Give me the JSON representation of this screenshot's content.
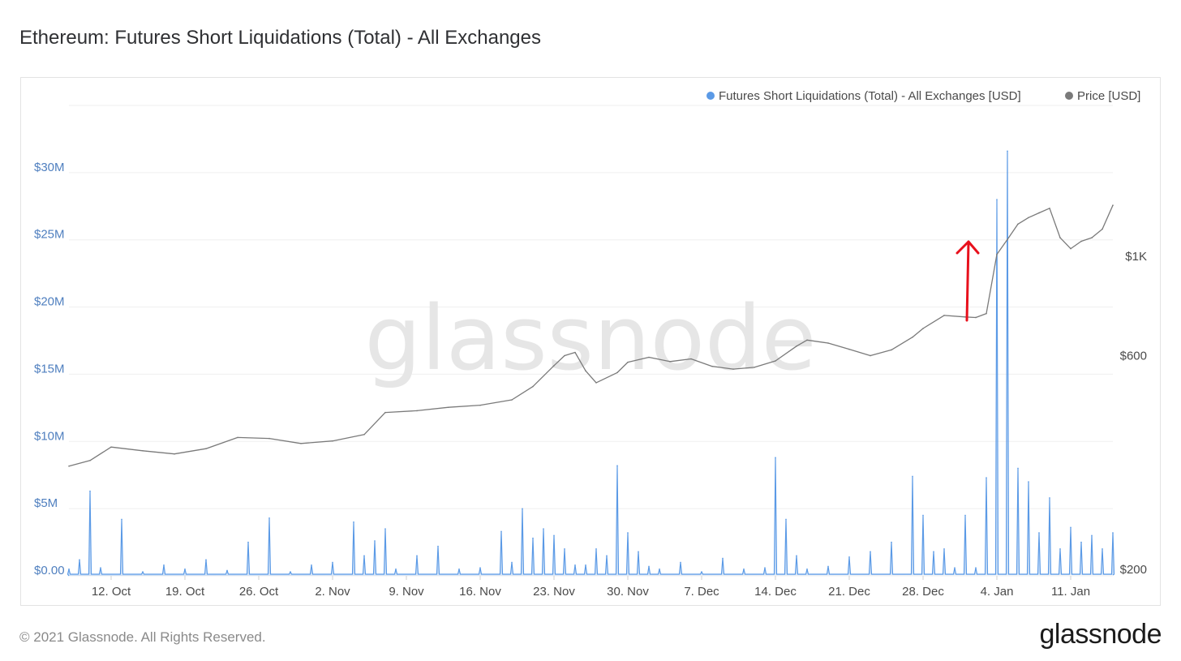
{
  "title": "Ethereum: Futures Short Liquidations (Total) - All Exchanges",
  "footer": "© 2021 Glassnode. All Rights Reserved.",
  "brand": "glassnode",
  "watermark": "glassnode",
  "colors": {
    "liquidations": "#5b9ae6",
    "price": "#7a7a7a",
    "left_axis_text": "#4f7fbf",
    "annotation_arrow": "#e8101c"
  },
  "chart_data": {
    "type": "line",
    "legend": {
      "placement": "top-right",
      "entries": [
        {
          "label": "Futures Short Liquidations (Total) - All Exchanges [USD]",
          "color": "#5b9ae6"
        },
        {
          "label": "Price [USD]",
          "color": "#7a7a7a"
        }
      ]
    },
    "x_ticks": [
      "12. Oct",
      "19. Oct",
      "26. Oct",
      "2. Nov",
      "9. Nov",
      "16. Nov",
      "23. Nov",
      "30. Nov",
      "7. Dec",
      "14. Dec",
      "21. Dec",
      "28. Dec",
      "4. Jan",
      "11. Jan"
    ],
    "x_range": [
      "2020-10-08",
      "2021-01-15"
    ],
    "y_left": {
      "ticks": [
        0,
        5000000,
        10000000,
        15000000,
        20000000,
        25000000,
        30000000
      ],
      "tick_labels": [
        "$0.00",
        "$5M",
        "$10M",
        "$15M",
        "$20M",
        "$25M",
        "$30M"
      ],
      "range": [
        0,
        35000000
      ],
      "grid": true
    },
    "y_right": {
      "scale": "log",
      "ticks": [
        200,
        600,
        1000
      ],
      "tick_labels": [
        "$200",
        "$600",
        "$1K"
      ]
    },
    "series": [
      {
        "name": "Futures Short Liquidations (Total) - All Exchanges [USD]",
        "axis": "left",
        "type": "area",
        "x": [
          "2020-10-08",
          "2020-10-09",
          "2020-10-10",
          "2020-10-11",
          "2020-10-13",
          "2020-10-15",
          "2020-10-17",
          "2020-10-19",
          "2020-10-21",
          "2020-10-23",
          "2020-10-25",
          "2020-10-27",
          "2020-10-29",
          "2020-10-31",
          "2020-11-02",
          "2020-11-04",
          "2020-11-05",
          "2020-11-06",
          "2020-11-07",
          "2020-11-08",
          "2020-11-10",
          "2020-11-12",
          "2020-11-14",
          "2020-11-16",
          "2020-11-18",
          "2020-11-19",
          "2020-11-20",
          "2020-11-21",
          "2020-11-22",
          "2020-11-23",
          "2020-11-24",
          "2020-11-25",
          "2020-11-26",
          "2020-11-27",
          "2020-11-28",
          "2020-11-29",
          "2020-11-30",
          "2020-12-01",
          "2020-12-02",
          "2020-12-03",
          "2020-12-05",
          "2020-12-07",
          "2020-12-09",
          "2020-12-11",
          "2020-12-13",
          "2020-12-14",
          "2020-12-15",
          "2020-12-16",
          "2020-12-17",
          "2020-12-19",
          "2020-12-21",
          "2020-12-23",
          "2020-12-25",
          "2020-12-27",
          "2020-12-28",
          "2020-12-29",
          "2020-12-30",
          "2020-12-31",
          "2021-01-01",
          "2021-01-02",
          "2021-01-03",
          "2021-01-04",
          "2021-01-05",
          "2021-01-06",
          "2021-01-07",
          "2021-01-08",
          "2021-01-09",
          "2021-01-10",
          "2021-01-11",
          "2021-01-12",
          "2021-01-13",
          "2021-01-14",
          "2021-01-15"
        ],
        "values": [
          500000,
          1200000,
          6300000,
          600000,
          4200000,
          300000,
          800000,
          500000,
          1200000,
          400000,
          2500000,
          4300000,
          300000,
          800000,
          1000000,
          4000000,
          1500000,
          2600000,
          3500000,
          500000,
          1500000,
          2200000,
          500000,
          600000,
          3300000,
          1000000,
          5000000,
          2800000,
          3500000,
          3000000,
          2000000,
          800000,
          800000,
          2000000,
          1500000,
          8200000,
          3200000,
          1800000,
          700000,
          500000,
          1000000,
          300000,
          1300000,
          500000,
          600000,
          8800000,
          4200000,
          1500000,
          500000,
          700000,
          1400000,
          1800000,
          2500000,
          7400000,
          4500000,
          1800000,
          2000000,
          600000,
          4500000,
          600000,
          7300000,
          28000000,
          31600000,
          8000000,
          7000000,
          3200000,
          5800000,
          2000000,
          3600000,
          2500000,
          3000000,
          2000000,
          3200000
        ]
      },
      {
        "name": "Price [USD]",
        "axis": "right",
        "type": "line",
        "x": [
          "2020-10-08",
          "2020-10-10",
          "2020-10-12",
          "2020-10-15",
          "2020-10-18",
          "2020-10-21",
          "2020-10-24",
          "2020-10-27",
          "2020-10-30",
          "2020-11-02",
          "2020-11-05",
          "2020-11-07",
          "2020-11-10",
          "2020-11-13",
          "2020-11-16",
          "2020-11-19",
          "2020-11-21",
          "2020-11-23",
          "2020-11-24",
          "2020-11-25",
          "2020-11-26",
          "2020-11-27",
          "2020-11-29",
          "2020-11-30",
          "2020-12-02",
          "2020-12-04",
          "2020-12-06",
          "2020-12-08",
          "2020-12-10",
          "2020-12-12",
          "2020-12-14",
          "2020-12-16",
          "2020-12-17",
          "2020-12-19",
          "2020-12-21",
          "2020-12-23",
          "2020-12-25",
          "2020-12-27",
          "2020-12-28",
          "2020-12-30",
          "2021-01-01",
          "2021-01-02",
          "2021-01-03",
          "2021-01-04",
          "2021-01-05",
          "2021-01-06",
          "2021-01-07",
          "2021-01-08",
          "2021-01-09",
          "2021-01-10",
          "2021-01-11",
          "2021-01-12",
          "2021-01-13",
          "2021-01-14",
          "2021-01-15"
        ],
        "values": [
          340,
          350,
          375,
          368,
          362,
          372,
          394,
          392,
          382,
          387,
          400,
          448,
          452,
          460,
          465,
          478,
          512,
          570,
          600,
          610,
          555,
          522,
          550,
          580,
          595,
          582,
          590,
          568,
          560,
          565,
          584,
          630,
          650,
          640,
          620,
          600,
          618,
          660,
          690,
          738,
          732,
          730,
          745,
          1010,
          1090,
          1180,
          1220,
          1250,
          1280,
          1100,
          1040,
          1080,
          1100,
          1150,
          1300
        ]
      }
    ],
    "annotations": [
      {
        "type": "arrow",
        "color": "#e8101c",
        "x": "2021-01-01",
        "from_value": 750,
        "to_value": 1000
      }
    ]
  }
}
